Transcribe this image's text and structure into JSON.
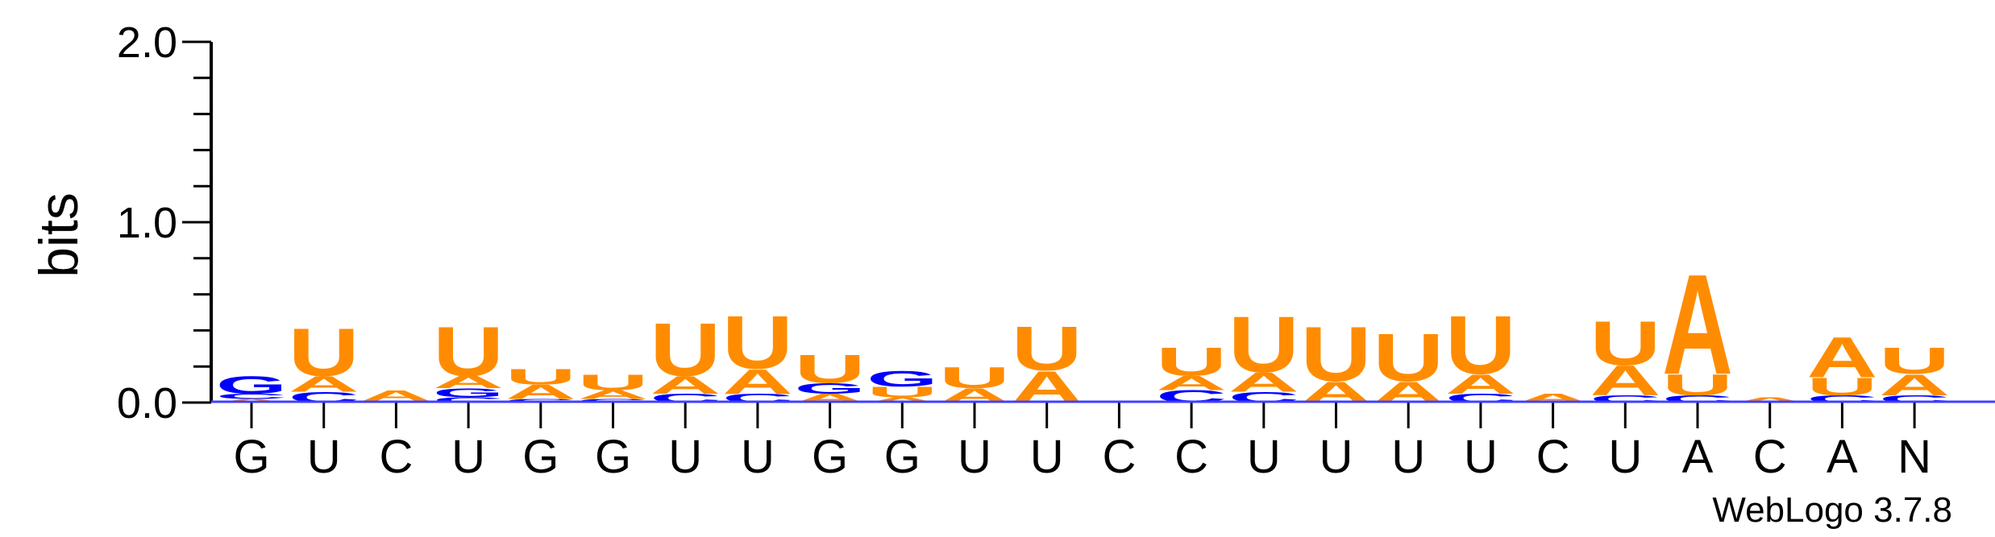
{
  "chart_data": {
    "type": "sequence-logo",
    "ylabel": "bits",
    "ylim": [
      0,
      2.0
    ],
    "yticks": [
      "0.0",
      "1.0",
      "2.0"
    ],
    "credit": "WebLogo 3.7.8",
    "colors": {
      "A": "#ff8c00",
      "U": "#ff8c00",
      "G": "#0000ff",
      "C": "#0000ff"
    },
    "positions": [
      {
        "label": "G",
        "stack": [
          {
            "base": "A",
            "bits": 0.02
          },
          {
            "base": "C",
            "bits": 0.03
          },
          {
            "base": "G",
            "bits": 0.1
          }
        ]
      },
      {
        "label": "U",
        "stack": [
          {
            "base": "C",
            "bits": 0.06
          },
          {
            "base": "A",
            "bits": 0.09
          },
          {
            "base": "U",
            "bits": 0.27
          }
        ]
      },
      {
        "label": "C",
        "stack": [
          {
            "base": "C",
            "bits": 0.01
          },
          {
            "base": "A",
            "bits": 0.06
          }
        ]
      },
      {
        "label": "U",
        "stack": [
          {
            "base": "C",
            "bits": 0.03
          },
          {
            "base": "G",
            "bits": 0.05
          },
          {
            "base": "A",
            "bits": 0.07
          },
          {
            "base": "U",
            "bits": 0.28
          }
        ]
      },
      {
        "label": "G",
        "stack": [
          {
            "base": "C",
            "bits": 0.02
          },
          {
            "base": "A",
            "bits": 0.08
          },
          {
            "base": "U",
            "bits": 0.09
          }
        ]
      },
      {
        "label": "G",
        "stack": [
          {
            "base": "C",
            "bits": 0.02
          },
          {
            "base": "A",
            "bits": 0.05
          },
          {
            "base": "U",
            "bits": 0.09
          }
        ]
      },
      {
        "label": "U",
        "stack": [
          {
            "base": "C",
            "bits": 0.05
          },
          {
            "base": "A",
            "bits": 0.1
          },
          {
            "base": "U",
            "bits": 0.3
          }
        ]
      },
      {
        "label": "U",
        "stack": [
          {
            "base": "C",
            "bits": 0.05
          },
          {
            "base": "A",
            "bits": 0.14
          },
          {
            "base": "U",
            "bits": 0.3
          }
        ]
      },
      {
        "label": "G",
        "stack": [
          {
            "base": "A",
            "bits": 0.05
          },
          {
            "base": "G",
            "bits": 0.06
          },
          {
            "base": "U",
            "bits": 0.16
          }
        ]
      },
      {
        "label": "G",
        "stack": [
          {
            "base": "A",
            "bits": 0.03
          },
          {
            "base": "U",
            "bits": 0.06
          },
          {
            "base": "G",
            "bits": 0.09
          }
        ]
      },
      {
        "label": "U",
        "stack": [
          {
            "base": "A",
            "bits": 0.08
          },
          {
            "base": "U",
            "bits": 0.12
          }
        ]
      },
      {
        "label": "U",
        "stack": [
          {
            "base": "A",
            "bits": 0.18
          },
          {
            "base": "U",
            "bits": 0.25
          }
        ]
      },
      {
        "label": "C",
        "stack": []
      },
      {
        "label": "C",
        "stack": [
          {
            "base": "C",
            "bits": 0.07
          },
          {
            "base": "A",
            "bits": 0.08
          },
          {
            "base": "U",
            "bits": 0.16
          }
        ]
      },
      {
        "label": "U",
        "stack": [
          {
            "base": "C",
            "bits": 0.06
          },
          {
            "base": "A",
            "bits": 0.11
          },
          {
            "base": "U",
            "bits": 0.32
          }
        ]
      },
      {
        "label": "U",
        "stack": [
          {
            "base": "A",
            "bits": 0.12
          },
          {
            "base": "U",
            "bits": 0.31
          }
        ]
      },
      {
        "label": "U",
        "stack": [
          {
            "base": "A",
            "bits": 0.12
          },
          {
            "base": "U",
            "bits": 0.27
          }
        ]
      },
      {
        "label": "U",
        "stack": [
          {
            "base": "C",
            "bits": 0.05
          },
          {
            "base": "A",
            "bits": 0.11
          },
          {
            "base": "U",
            "bits": 0.33
          }
        ]
      },
      {
        "label": "C",
        "stack": [
          {
            "base": "A",
            "bits": 0.05
          }
        ]
      },
      {
        "label": "U",
        "stack": [
          {
            "base": "C",
            "bits": 0.04
          },
          {
            "base": "A",
            "bits": 0.17
          },
          {
            "base": "U",
            "bits": 0.25
          }
        ]
      },
      {
        "label": "A",
        "stack": [
          {
            "base": "C",
            "bits": 0.04
          },
          {
            "base": "U",
            "bits": 0.12
          },
          {
            "base": "A",
            "bits": 0.57
          }
        ]
      },
      {
        "label": "C",
        "stack": [
          {
            "base": "A",
            "bits": 0.03
          }
        ]
      },
      {
        "label": "A",
        "stack": [
          {
            "base": "C",
            "bits": 0.04
          },
          {
            "base": "U",
            "bits": 0.1
          },
          {
            "base": "A",
            "bits": 0.23
          }
        ]
      },
      {
        "label": "N",
        "stack": [
          {
            "base": "C",
            "bits": 0.04
          },
          {
            "base": "A",
            "bits": 0.12
          },
          {
            "base": "U",
            "bits": 0.15
          }
        ]
      }
    ]
  }
}
